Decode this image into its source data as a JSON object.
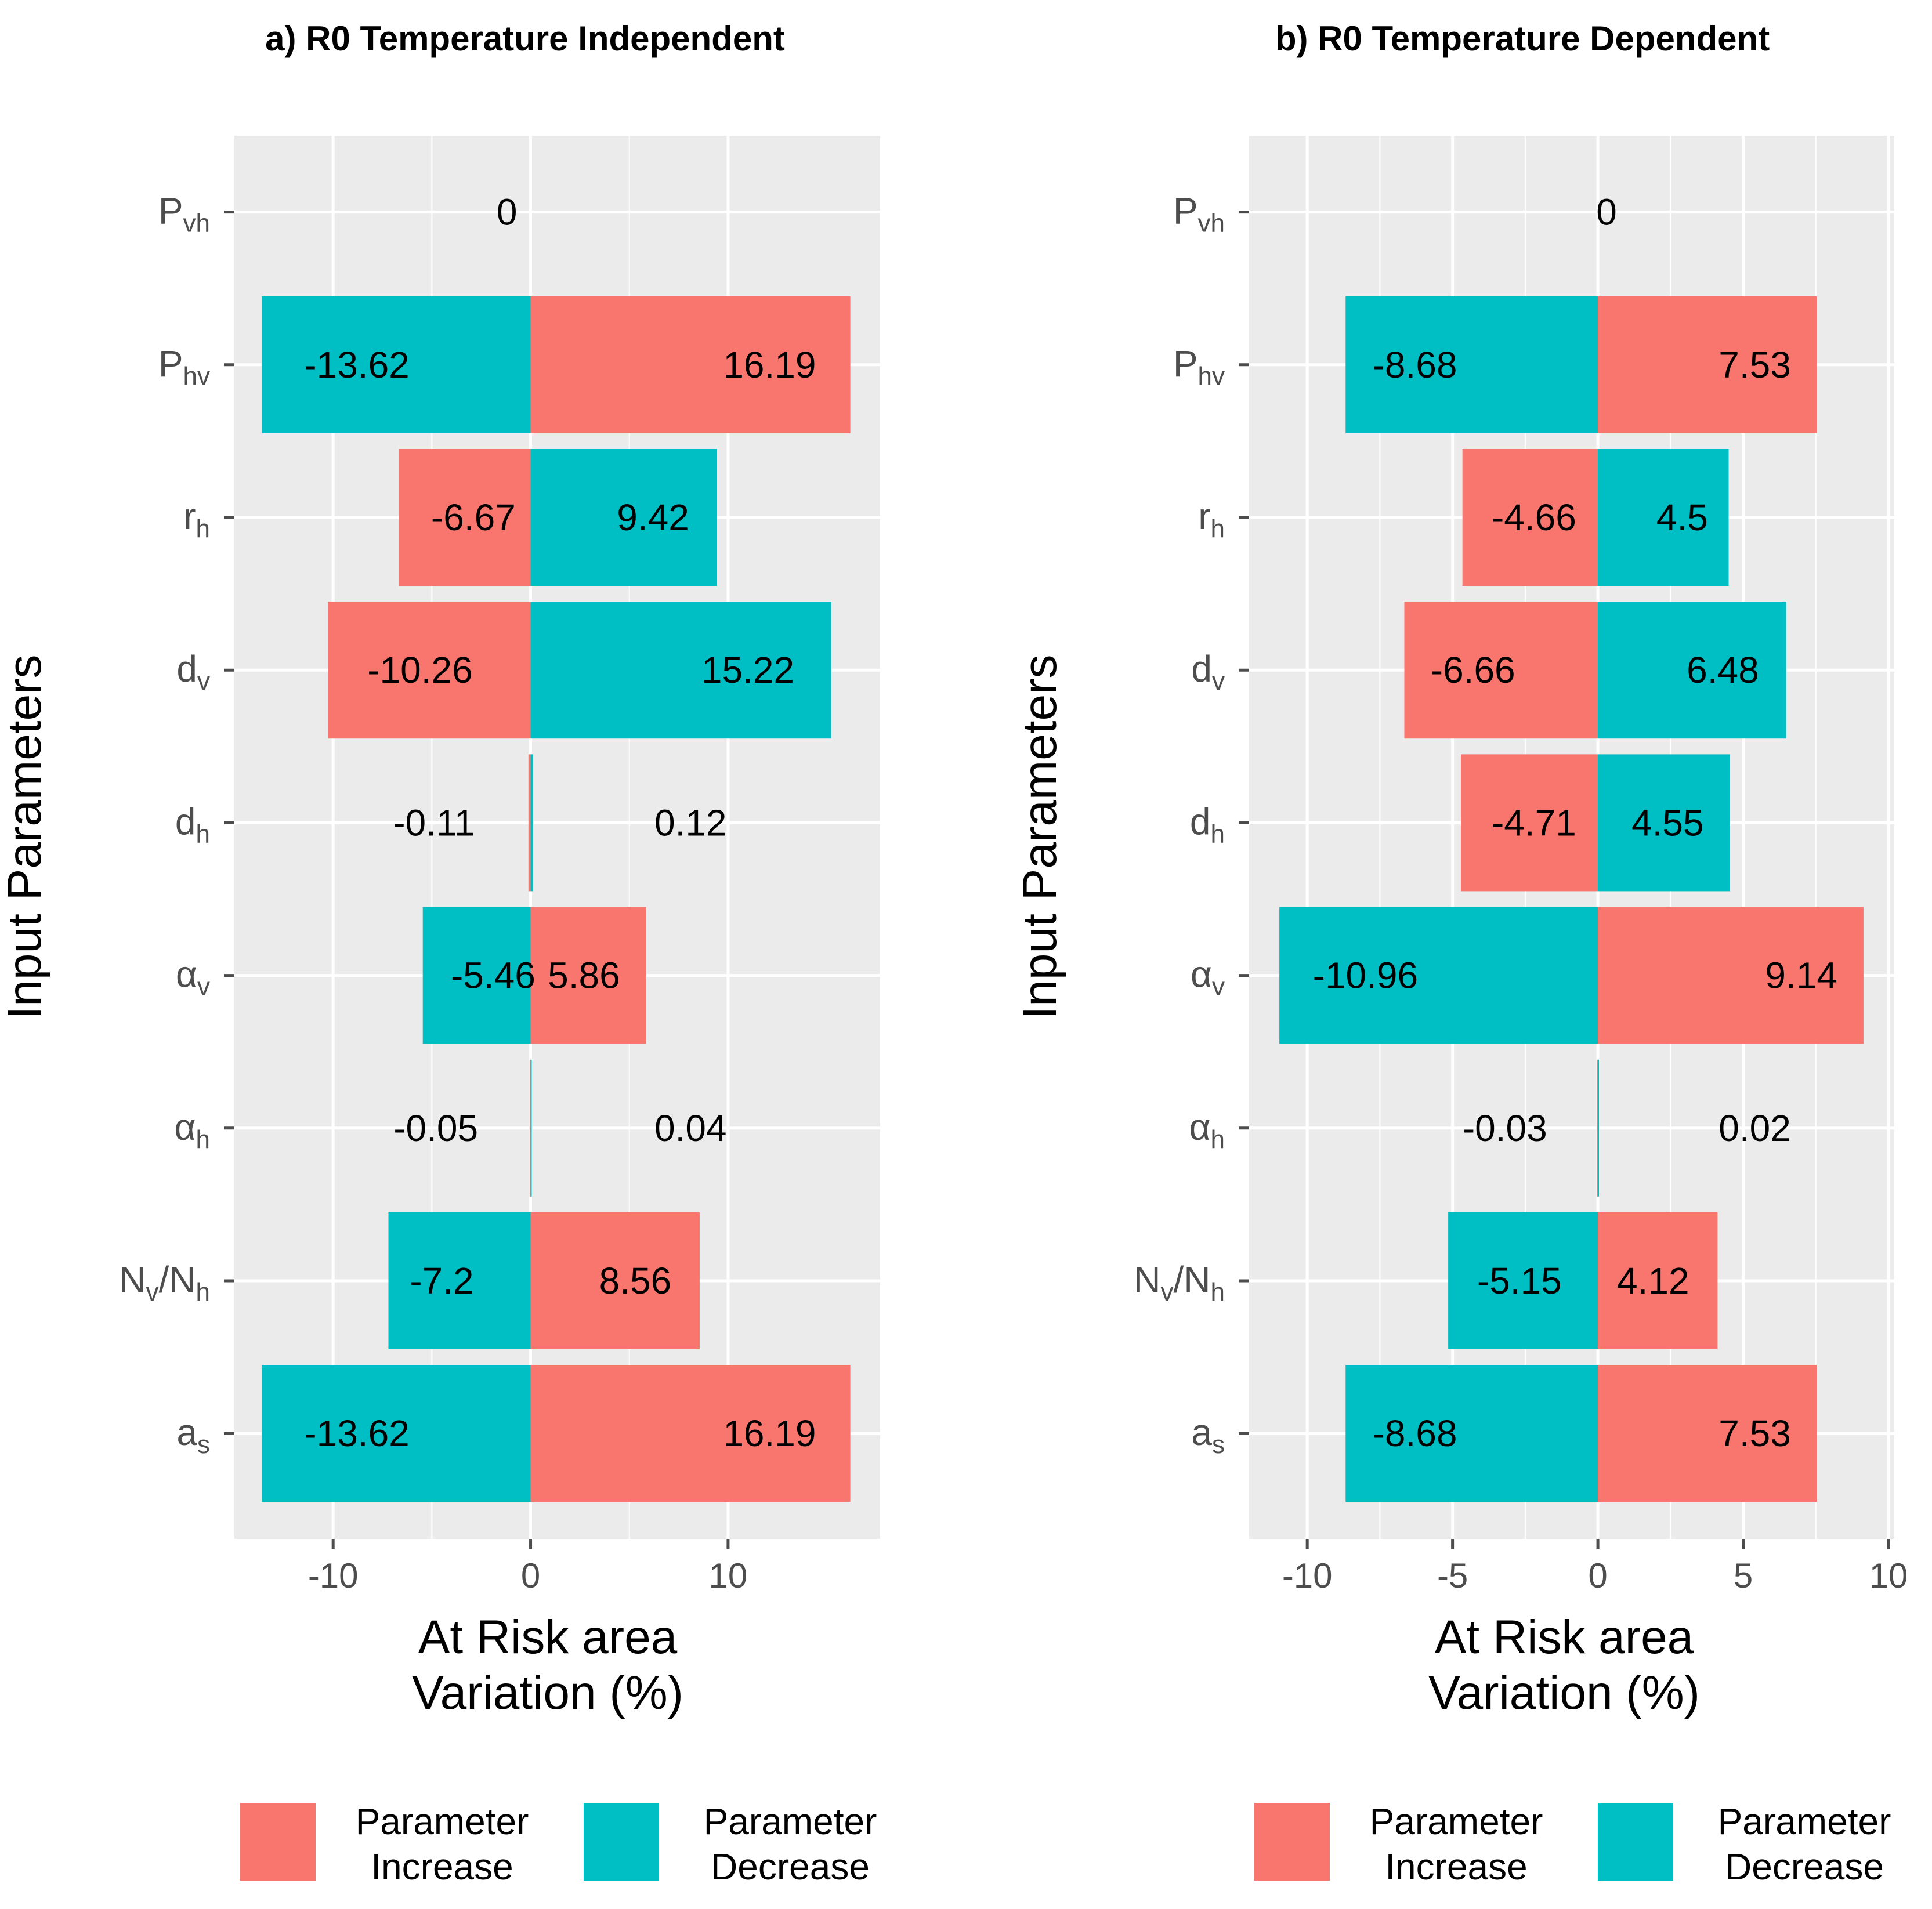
{
  "colors": {
    "increase": "#F8766D",
    "decrease": "#00BFC4",
    "panel": "#EBEBEB",
    "grid": "#FFFFFF",
    "tick": "#4D4D4D"
  },
  "y_axis_title": "Input Parameters",
  "x_axis_title_line1": "At Risk area",
  "x_axis_title_line2": "Variation (%)",
  "parameters": [
    {
      "main": "P",
      "sub": "vh"
    },
    {
      "main": "P",
      "sub": "hv"
    },
    {
      "main": "r",
      "sub": "h"
    },
    {
      "main": "d",
      "sub": "v"
    },
    {
      "main": "d",
      "sub": "h"
    },
    {
      "main": "α",
      "sub": "v"
    },
    {
      "main": "α",
      "sub": "h"
    },
    {
      "main": "N",
      "sub": "v",
      "main2": "/N",
      "sub2": "h"
    },
    {
      "main": "a",
      "sub": "s"
    }
  ],
  "legend": {
    "increase_line1": "Parameter",
    "increase_line2": "Increase",
    "decrease_line1": "Parameter",
    "decrease_line2": "Decrease"
  },
  "chart_data": [
    {
      "type": "bar",
      "orientation": "horizontal",
      "title": "a) R0 Temperature  Independent",
      "xlabel": "At Risk area Variation (%)",
      "ylabel": "Input Parameters",
      "xlim": [
        -15,
        17.7
      ],
      "xticks": [
        -10,
        0,
        10
      ],
      "xtick_labels": [
        "-10",
        "0",
        "10"
      ],
      "categories": [
        "Pvh",
        "Phv",
        "rh",
        "dv",
        "dh",
        "αv",
        "αh",
        "Nv/Nh",
        "as"
      ],
      "series": [
        {
          "name": "Parameter Increase",
          "values": [
            0,
            16.19,
            -6.67,
            -10.26,
            -0.11,
            5.86,
            -0.05,
            8.56,
            16.19
          ]
        },
        {
          "name": "Parameter Decrease",
          "values": [
            0,
            -13.62,
            9.42,
            15.22,
            0.12,
            -5.46,
            0.04,
            -7.2,
            -13.62
          ]
        }
      ],
      "bar_labels": [
        [
          {
            "text": "0",
            "x": -1.2
          }
        ],
        [
          {
            "text": "-13.62",
            "x": -8.8
          },
          {
            "text": "16.19",
            "x": 12.1
          }
        ],
        [
          {
            "text": "-6.67",
            "x": -2.9
          },
          {
            "text": "9.42",
            "x": 6.2
          }
        ],
        [
          {
            "text": "-10.26",
            "x": -5.6
          },
          {
            "text": "15.22",
            "x": 11.0
          }
        ],
        [
          {
            "text": "-0.11",
            "x": -4.9
          },
          {
            "text": "0.12",
            "x": 8.1
          }
        ],
        [
          {
            "text": "-5.46",
            "x": -1.9
          },
          {
            "text": "5.86",
            "x": 2.7
          }
        ],
        [
          {
            "text": "-0.05",
            "x": -4.8
          },
          {
            "text": "0.04",
            "x": 8.1
          }
        ],
        [
          {
            "text": "-7.2",
            "x": -4.5
          },
          {
            "text": "8.56",
            "x": 5.3
          }
        ],
        [
          {
            "text": "-13.62",
            "x": -8.8
          },
          {
            "text": "16.19",
            "x": 12.1
          }
        ]
      ]
    },
    {
      "type": "bar",
      "orientation": "horizontal",
      "title": "b) R0 Temperature Dependent",
      "xlabel": "At Risk area Variation (%)",
      "ylabel": "Input Parameters",
      "xlim": [
        -12,
        10.2
      ],
      "xticks": [
        -10,
        -5,
        0,
        5,
        10
      ],
      "xtick_labels": [
        "-10",
        "-5",
        "0",
        "5",
        "10"
      ],
      "categories": [
        "Pvh",
        "Phv",
        "rh",
        "dv",
        "dh",
        "αv",
        "αh",
        "Nv/Nh",
        "as"
      ],
      "series": [
        {
          "name": "Parameter Increase",
          "values": [
            0,
            7.53,
            -4.66,
            -6.66,
            -4.71,
            9.14,
            -0.03,
            4.12,
            7.53
          ]
        },
        {
          "name": "Parameter Decrease",
          "values": [
            0,
            -8.68,
            4.5,
            6.48,
            4.55,
            -10.96,
            0.02,
            -5.15,
            -8.68
          ]
        }
      ],
      "bar_labels": [
        [
          {
            "text": "0",
            "x": 0.3
          }
        ],
        [
          {
            "text": "-8.68",
            "x": -6.3
          },
          {
            "text": "7.53",
            "x": 5.4
          }
        ],
        [
          {
            "text": "-4.66",
            "x": -2.2
          },
          {
            "text": "4.5",
            "x": 2.9
          }
        ],
        [
          {
            "text": "-6.66",
            "x": -4.3
          },
          {
            "text": "6.48",
            "x": 4.3
          }
        ],
        [
          {
            "text": "-4.71",
            "x": -2.2
          },
          {
            "text": "4.55",
            "x": 2.4
          }
        ],
        [
          {
            "text": "-10.96",
            "x": -8.0
          },
          {
            "text": "9.14",
            "x": 7.0
          }
        ],
        [
          {
            "text": "-0.03",
            "x": -3.2
          },
          {
            "text": "0.02",
            "x": 5.4
          }
        ],
        [
          {
            "text": "-5.15",
            "x": -2.7
          },
          {
            "text": "4.12",
            "x": 1.9
          }
        ],
        [
          {
            "text": "-8.68",
            "x": -6.3
          },
          {
            "text": "7.53",
            "x": 5.4
          }
        ]
      ]
    }
  ]
}
